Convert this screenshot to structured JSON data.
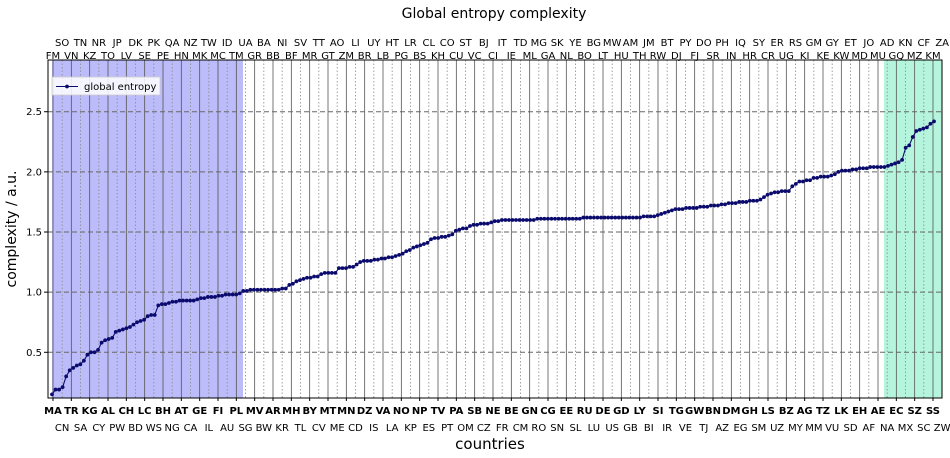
{
  "chart_data": {
    "type": "line",
    "title": "Global entropy complexity",
    "xlabel": "countries",
    "ylabel": "complexity / a.u.",
    "ylim": [
      0.12,
      2.93
    ],
    "yticks": [
      0.5,
      1.0,
      1.5,
      2.0,
      2.5
    ],
    "ytick_labels": [
      "0.5",
      "1.0",
      "1.5",
      "2.0",
      "2.5"
    ],
    "grid": "horizontal dashed at y ticks; vertical dotted at every country",
    "legend": {
      "entries": [
        "global entropy"
      ],
      "position": "top-left"
    },
    "colors": {
      "line": "#0b0b6e",
      "left_band": "#bcbcfa",
      "right_band": "#b5f5dd",
      "grid_dashed": "#666666",
      "grid_dotted": "#8a8a8a"
    },
    "highlight_bands": [
      {
        "from_country": "CN",
        "to_country": "PL",
        "color": "#bcbcfa"
      },
      {
        "from_country": "AE",
        "to_country": "ZA",
        "color": "#b5f5dd"
      }
    ],
    "labels_bottom_bold": [
      "MA",
      "TR",
      "KG",
      "AL",
      "CH",
      "LC",
      "BH",
      "AT",
      "GE",
      "FI",
      "PL",
      "MV",
      "AR",
      "MH",
      "BY",
      "MT",
      "MN",
      "DZ",
      "VA",
      "NO",
      "NP",
      "TV",
      "PA",
      "SB",
      "NE",
      "BE",
      "GN",
      "CG",
      "EE",
      "RU",
      "DE",
      "GD",
      "LY",
      "SI",
      "TG",
      "GW",
      "BN",
      "DM",
      "GH",
      "LS",
      "BZ",
      "AG",
      "TZ",
      "LK",
      "EH",
      "AE",
      "EC",
      "SZ",
      "SS"
    ],
    "labels_bottom": [
      "CN",
      "SA",
      "CY",
      "PW",
      "BD",
      "WS",
      "NG",
      "CA",
      "IL",
      "AU",
      "SG",
      "BW",
      "KR",
      "TL",
      "CV",
      "ME",
      "CD",
      "IS",
      "LA",
      "KP",
      "ES",
      "PT",
      "OM",
      "CZ",
      "FR",
      "CM",
      "RO",
      "SN",
      "SL",
      "LU",
      "US",
      "GB",
      "BI",
      "IR",
      "VE",
      "TJ",
      "AZ",
      "EG",
      "SM",
      "UZ",
      "MY",
      "MM",
      "VU",
      "SD",
      "AF",
      "NA",
      "MX",
      "SC",
      "ZW"
    ],
    "labels_top_row1": [
      "SO",
      "TN",
      "NR",
      "JP",
      "DK",
      "PK",
      "QA",
      "NZ",
      "TW",
      "ID",
      "UA",
      "BA",
      "NI",
      "SV",
      "TT",
      "AO",
      "LI",
      "UY",
      "HT",
      "LR",
      "CL",
      "CO",
      "ST",
      "BJ",
      "IT",
      "TD",
      "MG",
      "SK",
      "YE",
      "BG",
      "MW",
      "AM",
      "JM",
      "BT",
      "PY",
      "DO",
      "PH",
      "IQ",
      "SY",
      "ER",
      "RS",
      "GM",
      "GY",
      "ET",
      "JO",
      "AD",
      "KN",
      "CF",
      "ZA"
    ],
    "labels_top_row2": [
      "FM",
      "VN",
      "KZ",
      "TO",
      "LV",
      "SE",
      "PE",
      "HN",
      "MK",
      "MC",
      "TM",
      "GR",
      "BB",
      "BF",
      "MR",
      "GT",
      "ZM",
      "BR",
      "LB",
      "PG",
      "BS",
      "KH",
      "CU",
      "VC",
      "CI",
      "IE",
      "ML",
      "GA",
      "NL",
      "BO",
      "LT",
      "HU",
      "TH",
      "RW",
      "DJ",
      "FJ",
      "SR",
      "IN",
      "HR",
      "CR",
      "UG",
      "KI",
      "KE",
      "KW",
      "MD",
      "MU",
      "GQ",
      "MZ",
      "KM"
    ],
    "series": [
      {
        "name": "global entropy",
        "values": [
          0.15,
          0.19,
          0.19,
          0.21,
          0.3,
          0.35,
          0.37,
          0.39,
          0.4,
          0.43,
          0.48,
          0.5,
          0.5,
          0.52,
          0.58,
          0.6,
          0.61,
          0.62,
          0.67,
          0.68,
          0.69,
          0.7,
          0.71,
          0.73,
          0.75,
          0.76,
          0.77,
          0.8,
          0.81,
          0.81,
          0.89,
          0.9,
          0.9,
          0.91,
          0.92,
          0.92,
          0.93,
          0.93,
          0.93,
          0.93,
          0.93,
          0.94,
          0.95,
          0.95,
          0.96,
          0.96,
          0.96,
          0.97,
          0.97,
          0.98,
          0.98,
          0.98,
          0.98,
          0.99,
          1.01,
          1.01,
          1.02,
          1.02,
          1.02,
          1.02,
          1.02,
          1.02,
          1.02,
          1.02,
          1.02,
          1.03,
          1.03,
          1.06,
          1.07,
          1.09,
          1.1,
          1.11,
          1.12,
          1.12,
          1.13,
          1.13,
          1.15,
          1.16,
          1.16,
          1.16,
          1.16,
          1.2,
          1.2,
          1.2,
          1.21,
          1.21,
          1.23,
          1.25,
          1.26,
          1.26,
          1.26,
          1.27,
          1.27,
          1.28,
          1.28,
          1.29,
          1.29,
          1.3,
          1.31,
          1.32,
          1.34,
          1.35,
          1.37,
          1.38,
          1.39,
          1.4,
          1.41,
          1.44,
          1.45,
          1.45,
          1.46,
          1.46,
          1.47,
          1.48,
          1.51,
          1.52,
          1.53,
          1.53,
          1.55,
          1.56,
          1.56,
          1.57,
          1.57,
          1.57,
          1.58,
          1.59,
          1.59,
          1.6,
          1.6,
          1.6,
          1.6,
          1.6,
          1.6,
          1.6,
          1.6,
          1.6,
          1.6,
          1.61,
          1.61,
          1.61,
          1.61,
          1.61,
          1.61,
          1.61,
          1.61,
          1.61,
          1.61,
          1.61,
          1.61,
          1.61,
          1.62,
          1.62,
          1.62,
          1.62,
          1.62,
          1.62,
          1.62,
          1.62,
          1.62,
          1.62,
          1.62,
          1.62,
          1.62,
          1.62,
          1.62,
          1.62,
          1.62,
          1.63,
          1.63,
          1.63,
          1.63,
          1.64,
          1.65,
          1.66,
          1.67,
          1.68,
          1.69,
          1.69,
          1.69,
          1.7,
          1.7,
          1.7,
          1.7,
          1.71,
          1.71,
          1.71,
          1.72,
          1.72,
          1.72,
          1.73,
          1.73,
          1.74,
          1.74,
          1.74,
          1.75,
          1.75,
          1.75,
          1.76,
          1.76,
          1.76,
          1.77,
          1.79,
          1.81,
          1.82,
          1.83,
          1.83,
          1.84,
          1.84,
          1.84,
          1.88,
          1.9,
          1.92,
          1.92,
          1.93,
          1.93,
          1.95,
          1.95,
          1.96,
          1.96,
          1.96,
          1.97,
          1.98,
          2.0,
          2.01,
          2.01,
          2.01,
          2.02,
          2.02,
          2.03,
          2.03,
          2.03,
          2.04,
          2.04,
          2.04,
          2.04,
          2.04,
          2.05,
          2.06,
          2.07,
          2.08,
          2.1,
          2.2,
          2.22,
          2.29,
          2.34,
          2.35,
          2.36,
          2.37,
          2.4,
          2.42
        ]
      }
    ]
  }
}
